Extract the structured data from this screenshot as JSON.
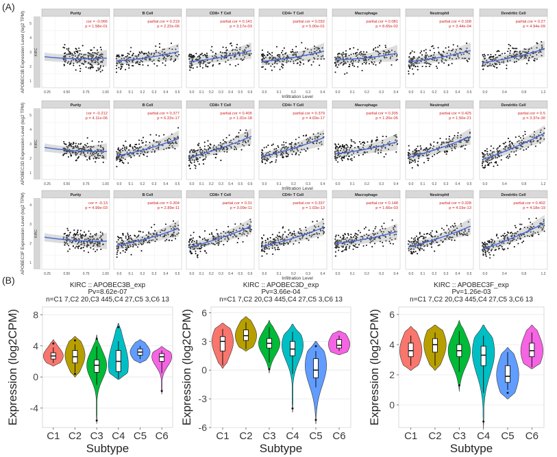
{
  "panel_labels": {
    "a": "(A)",
    "b": "(B)"
  },
  "section_a": {
    "x_title": "Infiltration Level",
    "strip_label": "KIRC",
    "rows": [
      {
        "gene_label": "APOBEC3B Expression Level (log2 TPM)",
        "y_ticks": [
          "1",
          "2",
          "3",
          "4",
          "5"
        ],
        "panels": [
          {
            "name": "Purity",
            "stat1": "cor = -0.066",
            "stat2": "p = 1.58e-01",
            "x_ticks": [
              "0.25",
              "0.50",
              "0.75",
              "1.00"
            ]
          },
          {
            "name": "B Cell",
            "stat1": "partial.cor = 0.219",
            "stat2": "p = 2.22e-06",
            "x_ticks": [
              "0.0",
              "0.1",
              "0.2",
              "0.3",
              "0.4",
              "0.5"
            ]
          },
          {
            "name": "CD8+ T Cell",
            "stat1": "partial.cor = 0.141",
            "stat2": "p = 3.17e-03",
            "x_ticks": [
              "0.0",
              "0.1",
              "0.2",
              "0.3",
              "0.4",
              "0.5",
              "0.6"
            ]
          },
          {
            "name": "CD4+ T Cell",
            "stat1": "partial.cor = 0.032",
            "stat2": "p = 5.00e-01",
            "x_ticks": [
              "0.0",
              "0.1",
              "0.2",
              "0.3",
              "0.4"
            ]
          },
          {
            "name": "Macrophage",
            "stat1": "partial.cor = 0.081",
            "stat2": "p = 8.65e-02",
            "x_ticks": [
              "0.0",
              "0.1",
              "0.2",
              "0.3",
              "0.4"
            ]
          },
          {
            "name": "Neutrophil",
            "stat1": "partial.cor = 0.168",
            "stat2": "p = 3.44e-04",
            "x_ticks": [
              "0.0",
              "0.1",
              "0.2",
              "0.3",
              "0.4",
              "0.5"
            ]
          },
          {
            "name": "Dendritic Cell",
            "stat1": "partial.cor = 0.27",
            "stat2": "p = 4.94e-09",
            "x_ticks": [
              "0.0",
              "0.4",
              "0.8",
              "1.2"
            ]
          }
        ]
      },
      {
        "gene_label": "APOBEC3D Expression Level (log2 TPM)",
        "y_ticks": [
          "1",
          "2",
          "3",
          "4",
          "5"
        ],
        "panels": [
          {
            "name": "Purity",
            "stat1": "cor = -0.212",
            "stat2": "p = 4.11e-06",
            "x_ticks": [
              "0.25",
              "0.50",
              "0.75",
              "1.00"
            ]
          },
          {
            "name": "B Cell",
            "stat1": "partial.cor = 0.377",
            "stat2": "p = 6.22e-17",
            "x_ticks": [
              "0.0",
              "0.1",
              "0.2",
              "0.3",
              "0.4",
              "0.5"
            ]
          },
          {
            "name": "CD8+ T Cell",
            "stat1": "partial.cor = 0.405",
            "stat2": "p = 1.01e-18",
            "x_ticks": [
              "0.0",
              "0.1",
              "0.2",
              "0.3",
              "0.4",
              "0.5",
              "0.6"
            ]
          },
          {
            "name": "CD4+ T Cell",
            "stat1": "partial.cor = 0.379",
            "stat2": "p = 4.03e-17",
            "x_ticks": [
              "0.0",
              "0.1",
              "0.2",
              "0.3",
              "0.4"
            ]
          },
          {
            "name": "Macrophage",
            "stat1": "partial.cor = 0.205",
            "stat2": "p = 1.20e-05",
            "x_ticks": [
              "0.0",
              "0.1",
              "0.2",
              "0.3",
              "0.4"
            ]
          },
          {
            "name": "Neutrophil",
            "stat1": "partial.cor = 0.425",
            "stat2": "p = 1.50e-21",
            "x_ticks": [
              "0.0",
              "0.1",
              "0.2",
              "0.3",
              "0.4",
              "0.5"
            ]
          },
          {
            "name": "Dendritic Cell",
            "stat1": "partial.cor = 0.5",
            "stat2": "p = 3.37e-30",
            "x_ticks": [
              "0.0",
              "0.4",
              "0.8",
              "1.2"
            ]
          }
        ]
      },
      {
        "gene_label": "APOBEC3F Expression Level (log2 TPM)",
        "y_ticks": [
          "1",
          "2",
          "3",
          "4"
        ],
        "panels": [
          {
            "name": "Purity",
            "stat1": "cor = -0.13",
            "stat2": "p = 4.99e-03",
            "x_ticks": [
              "0.25",
              "0.50",
              "0.75",
              "1.00"
            ]
          },
          {
            "name": "B Cell",
            "stat1": "partial.cor = 0.304",
            "stat2": "p = 2.89e-11",
            "x_ticks": [
              "0.0",
              "0.1",
              "0.2",
              "0.3",
              "0.4",
              "0.5"
            ]
          },
          {
            "name": "CD8+ T Cell",
            "stat1": "partial.cor = 0.31",
            "stat2": "p = 3.09e-11",
            "x_ticks": [
              "0.0",
              "0.1",
              "0.2",
              "0.3",
              "0.4",
              "0.5",
              "0.6"
            ]
          },
          {
            "name": "CD4+ T Cell",
            "stat1": "partial.cor = 0.337",
            "stat2": "p = 1.03e-13",
            "x_ticks": [
              "0.0",
              "0.1",
              "0.2",
              "0.3",
              "0.4"
            ]
          },
          {
            "name": "Macrophage",
            "stat1": "partial.cor = 0.148",
            "stat2": "p = 1.66e-03",
            "x_ticks": [
              "0.0",
              "0.1",
              "0.2",
              "0.3",
              "0.4"
            ]
          },
          {
            "name": "Neutrophil",
            "stat1": "partial.cor = 0.328",
            "stat2": "p = 4.19e-13",
            "x_ticks": [
              "0.0",
              "0.1",
              "0.2",
              "0.3",
              "0.4",
              "0.5"
            ]
          },
          {
            "name": "Dendritic Cell",
            "stat1": "partial.cor = 0.402",
            "stat2": "p = 4.18e-19",
            "x_ticks": [
              "0.0",
              "0.4",
              "0.8",
              "1.2"
            ]
          }
        ]
      }
    ]
  },
  "chart_data": [
    {
      "type": "violin",
      "title": "KIRC :: APOBEC3B_exp",
      "subtitle1": "Pv=8.62e-07",
      "subtitle2": "n=C1 7,C2 20,C3 445,C4 27,C5 3,C6 13",
      "xlabel": "Subtype",
      "ylabel": "Expression (log2CPM)",
      "ylim": [
        -6.5,
        9
      ],
      "yticks": [
        -4,
        0,
        4,
        8
      ],
      "categories": [
        "C1",
        "C2",
        "C3",
        "C4",
        "C5",
        "C6"
      ],
      "colors": [
        "#F8766D",
        "#B79F00",
        "#00BA38",
        "#00BFC4",
        "#619CFF",
        "#F564E3"
      ],
      "series": [
        {
          "name": "C1",
          "min": 1.8,
          "q1": 2.3,
          "median": 2.7,
          "q3": 3.1,
          "max": 3.8,
          "vmin": 1.4,
          "vmax": 4.8,
          "peak": 2.7
        },
        {
          "name": "C2",
          "min": 0.6,
          "q1": 1.8,
          "median": 2.6,
          "q3": 3.4,
          "max": 4.2,
          "vmin": 0.0,
          "vmax": 5.2,
          "peak": 2.8
        },
        {
          "name": "C3",
          "min": -1.0,
          "q1": 0.6,
          "median": 1.5,
          "q3": 2.2,
          "max": 3.9,
          "vmin": -6.0,
          "vmax": 5.4,
          "peak": 1.5
        },
        {
          "name": "C4",
          "min": -0.2,
          "q1": 0.7,
          "median": 2.0,
          "q3": 3.4,
          "max": 4.6,
          "vmin": -0.3,
          "vmax": 6.9,
          "peak": 1.6
        },
        {
          "name": "C5",
          "min": 2.3,
          "q1": 2.8,
          "median": 3.2,
          "q3": 3.6,
          "max": 4.0,
          "vmin": 1.8,
          "vmax": 4.8,
          "peak": 3.2
        },
        {
          "name": "C6",
          "min": 0.5,
          "q1": 2.0,
          "median": 2.6,
          "q3": 3.0,
          "max": 3.4,
          "vmin": -2.2,
          "vmax": 3.9,
          "peak": 2.6
        }
      ]
    },
    {
      "type": "violin",
      "title": "KIRC :: APOBEC3D_exp",
      "subtitle1": "Pv=3.66e-04",
      "subtitle2": "n=C1 7,C2 20,C3 445,C4 27,C5 3,C6 13",
      "xlabel": "Subtype",
      "ylabel": "Expression (log2CPM)",
      "ylim": [
        -6,
        6.6
      ],
      "yticks": [
        -6,
        -3,
        0,
        3,
        6
      ],
      "categories": [
        "C1",
        "C2",
        "C3",
        "C4",
        "C5",
        "C6"
      ],
      "colors": [
        "#F8766D",
        "#B79F00",
        "#00BA38",
        "#00BFC4",
        "#619CFF",
        "#F564E3"
      ],
      "series": [
        {
          "name": "C1",
          "min": 0.5,
          "q1": 2.0,
          "median": 3.0,
          "q3": 3.5,
          "max": 4.3,
          "vmin": 0.2,
          "vmax": 4.9,
          "peak": 3.0
        },
        {
          "name": "C2",
          "min": 2.2,
          "q1": 3.1,
          "median": 3.6,
          "q3": 4.2,
          "max": 5.0,
          "vmin": 2.0,
          "vmax": 5.6,
          "peak": 3.6
        },
        {
          "name": "C3",
          "min": 0.8,
          "q1": 2.3,
          "median": 2.8,
          "q3": 3.3,
          "max": 4.5,
          "vmin": -0.3,
          "vmax": 5.2,
          "peak": 2.8
        },
        {
          "name": "C4",
          "min": -0.4,
          "q1": 1.5,
          "median": 2.2,
          "q3": 3.0,
          "max": 4.0,
          "vmin": -4.4,
          "vmax": 4.8,
          "peak": 2.6
        },
        {
          "name": "C5",
          "min": -1.8,
          "q1": -0.8,
          "median": 0.0,
          "q3": 1.2,
          "max": 2.0,
          "vmin": -5.6,
          "vmax": 3.0,
          "peak": 0.5
        },
        {
          "name": "C6",
          "min": 2.0,
          "q1": 2.3,
          "median": 2.6,
          "q3": 3.2,
          "max": 3.6,
          "vmin": 1.6,
          "vmax": 4.1,
          "peak": 2.7
        }
      ]
    },
    {
      "type": "violin",
      "title": "KIRC :: APOBEC3F_exp",
      "subtitle1": "Pv=1.26e-03",
      "subtitle2": "n=C1 7,C2 20,C3 445,C4 27,C5 3,C6 13",
      "xlabel": "Subtype",
      "ylabel": "Expression (log2CPM)",
      "ylim": [
        -1.5,
        6.5
      ],
      "yticks": [
        0,
        2,
        4,
        6
      ],
      "categories": [
        "C1",
        "C2",
        "C3",
        "C4",
        "C5",
        "C6"
      ],
      "colors": [
        "#F8766D",
        "#B79F00",
        "#00BA38",
        "#00BFC4",
        "#619CFF",
        "#F564E3"
      ],
      "series": [
        {
          "name": "C1",
          "min": 2.6,
          "q1": 3.2,
          "median": 3.6,
          "q3": 4.1,
          "max": 4.6,
          "vmin": 2.3,
          "vmax": 5.2,
          "peak": 3.6
        },
        {
          "name": "C2",
          "min": 2.6,
          "q1": 3.5,
          "median": 4.0,
          "q3": 4.4,
          "max": 4.8,
          "vmin": 2.3,
          "vmax": 5.3,
          "peak": 4.0
        },
        {
          "name": "C3",
          "min": 2.2,
          "q1": 3.2,
          "median": 3.6,
          "q3": 4.0,
          "max": 4.9,
          "vmin": 0.9,
          "vmax": 5.6,
          "peak": 3.6
        },
        {
          "name": "C4",
          "min": 0.8,
          "q1": 2.6,
          "median": 3.3,
          "q3": 3.9,
          "max": 4.6,
          "vmin": -1.5,
          "vmax": 5.3,
          "peak": 3.5
        },
        {
          "name": "C5",
          "min": 1.0,
          "q1": 1.5,
          "median": 1.9,
          "q3": 2.6,
          "max": 3.5,
          "vmin": 0.4,
          "vmax": 3.8,
          "peak": 2.0
        },
        {
          "name": "C6",
          "min": 2.5,
          "q1": 3.2,
          "median": 3.6,
          "q3": 4.1,
          "max": 4.8,
          "vmin": 2.4,
          "vmax": 5.3,
          "peak": 3.6
        }
      ]
    }
  ]
}
